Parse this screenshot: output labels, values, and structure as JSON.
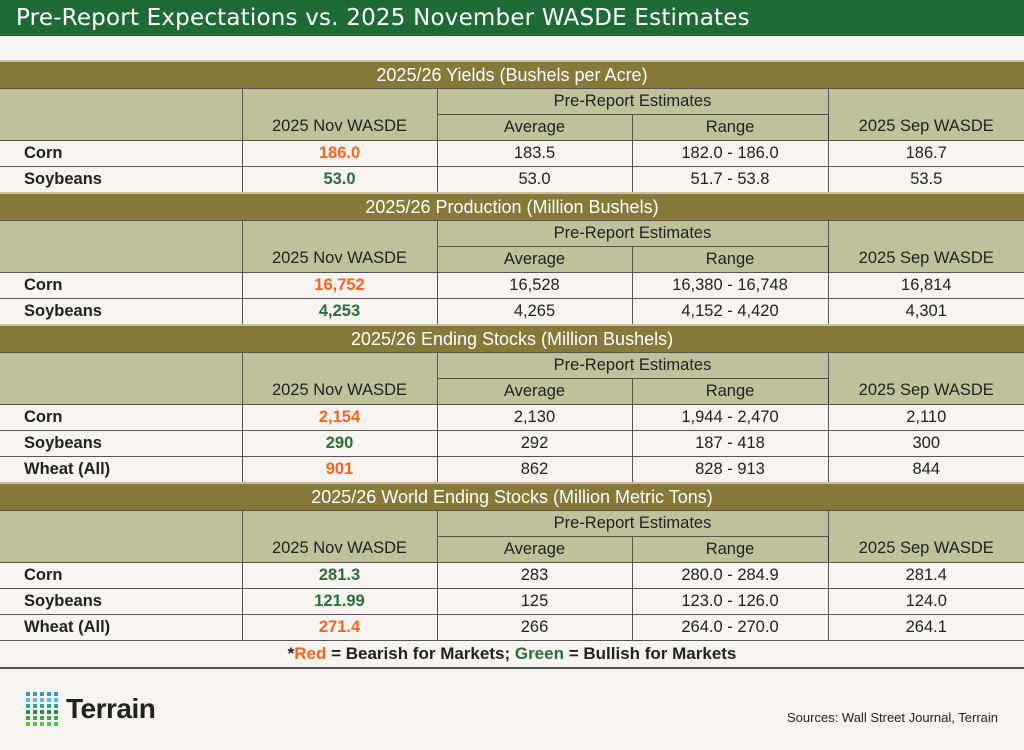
{
  "title": "Pre-Report Expectations vs. 2025 November WASDE Estimates",
  "headers": {
    "nov": "2025 Nov WASDE",
    "pre": "Pre-Report Estimates",
    "avg": "Average",
    "range": "Range",
    "sep": "2025 Sep WASDE"
  },
  "colors": {
    "title_bg": "#1e6b35",
    "section_bg": "#857a3a",
    "header_bg": "#bfc19a",
    "bearish": "#f26522",
    "bullish": "#2a6e3c"
  },
  "sections": [
    {
      "title": "2025/26 Yields (Bushels per Acre)",
      "rows": [
        {
          "crop": "Corn",
          "nov": "186.0",
          "signal": "bearish",
          "avg": "183.5",
          "range": "182.0 - 186.0",
          "sep": "186.7"
        },
        {
          "crop": "Soybeans",
          "nov": "53.0",
          "signal": "bullish",
          "avg": "53.0",
          "range": "51.7 - 53.8",
          "sep": "53.5"
        }
      ]
    },
    {
      "title": "2025/26 Production (Million Bushels)",
      "rows": [
        {
          "crop": "Corn",
          "nov": "16,752",
          "signal": "bearish",
          "avg": "16,528",
          "range": "16,380 - 16,748",
          "sep": "16,814"
        },
        {
          "crop": "Soybeans",
          "nov": "4,253",
          "signal": "bullish",
          "avg": "4,265",
          "range": "4,152 - 4,420",
          "sep": "4,301"
        }
      ]
    },
    {
      "title": "2025/26 Ending Stocks (Million Bushels)",
      "rows": [
        {
          "crop": "Corn",
          "nov": "2,154",
          "signal": "bearish",
          "avg": "2,130",
          "range": "1,944 - 2,470",
          "sep": "2,110"
        },
        {
          "crop": "Soybeans",
          "nov": "290",
          "signal": "bullish",
          "avg": "292",
          "range": "187 - 418",
          "sep": "300"
        },
        {
          "crop": "Wheat (All)",
          "nov": "901",
          "signal": "bearish",
          "avg": "862",
          "range": "828 - 913",
          "sep": "844"
        }
      ]
    },
    {
      "title": "2025/26 World Ending Stocks (Million Metric Tons)",
      "rows": [
        {
          "crop": "Corn",
          "nov": "281.3",
          "signal": "bullish",
          "avg": "283",
          "range": "280.0 - 284.9",
          "sep": "281.4"
        },
        {
          "crop": "Soybeans",
          "nov": "121.99",
          "signal": "bullish",
          "avg": "125",
          "range": "123.0 - 126.0",
          "sep": "124.0"
        },
        {
          "crop": "Wheat (All)",
          "nov": "271.4",
          "signal": "bearish",
          "avg": "266",
          "range": "264.0 - 270.0",
          "sep": "264.1"
        }
      ]
    }
  ],
  "footnote": {
    "star": "*",
    "red": "Red",
    "mid": " = Bearish for Markets; ",
    "green": "Green",
    "end": " = Bullish for Markets"
  },
  "logo": {
    "text": "Terrain"
  },
  "sources": "Sources: Wall Street Journal, Terrain"
}
